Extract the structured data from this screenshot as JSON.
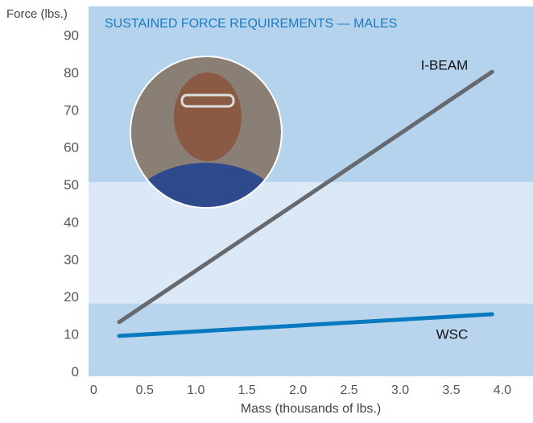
{
  "chart_data": {
    "type": "line",
    "title": "SUSTAINED FORCE REQUIREMENTS — MALES",
    "y_label": "Force (lbs.)",
    "x_label": "Mass (thousands of lbs.)",
    "xlim": [
      -0.05,
      4.3
    ],
    "ylim": [
      -1,
      98
    ],
    "xticks": [
      0,
      0.5,
      {
        "value": 1,
        "label": "1.0"
      },
      1.5,
      {
        "value": 2,
        "label": "2.0"
      },
      2.5,
      {
        "value": 3,
        "label": "3.0"
      },
      3.5,
      {
        "value": 4,
        "label": "4.0"
      }
    ],
    "yticks": [
      0,
      10,
      20,
      30,
      40,
      50,
      60,
      70,
      80,
      90
    ],
    "bands": [
      {
        "from": -1,
        "to": 18.5,
        "color": "#b9d5ed"
      },
      {
        "from": 18.5,
        "to": 51,
        "color": "#dbe9f6"
      },
      {
        "from": 51,
        "to": 98,
        "color": "#b5d3ec"
      }
    ],
    "x": [
      0.25,
      3.9
    ],
    "series": [
      {
        "name": "I-BEAM",
        "color": "#66696d",
        "values": [
          13.5,
          80.5
        ]
      },
      {
        "name": "WSC",
        "color": "#0a7ac0",
        "values": [
          9.8,
          15.6
        ]
      }
    ]
  }
}
